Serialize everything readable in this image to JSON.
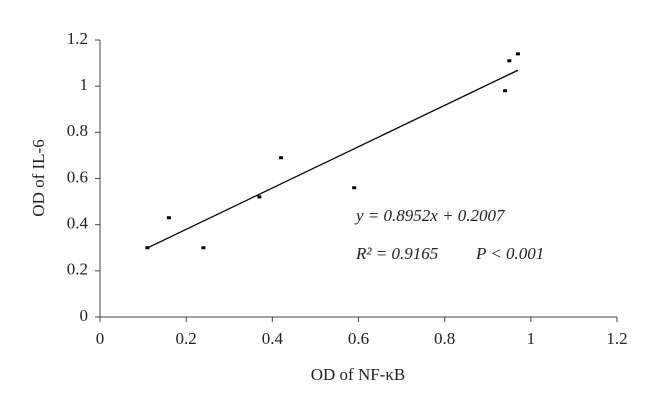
{
  "chart_data": {
    "type": "scatter",
    "x_label": "OD of NF-κB",
    "y_label": "OD of IL-6",
    "series": [
      {
        "color": "#000000",
        "x": [
          0.11,
          0.16,
          0.24,
          0.37,
          0.42,
          0.59,
          0.94,
          0.95,
          0.97
        ],
        "values": [
          0.3,
          0.43,
          0.3,
          0.52,
          0.69,
          0.56,
          0.98,
          1.11,
          1.14
        ]
      }
    ],
    "trendline": {
      "slope": 0.8952,
      "intercept": 0.2007,
      "color": "#000000"
    },
    "annotations": {
      "equation": "y = 0.8952x + 0.2007",
      "r2": "R² = 0.9165",
      "p": "P < 0.001"
    },
    "xlim": [
      0,
      1.2
    ],
    "xticks": [
      0,
      0.2,
      0.4,
      0.6,
      0.8,
      1,
      1.2
    ],
    "ylim": [
      0,
      1.2
    ],
    "yticks": [
      0,
      0.2,
      0.4,
      0.6,
      0.8,
      1,
      1.2
    ],
    "grid": false
  }
}
